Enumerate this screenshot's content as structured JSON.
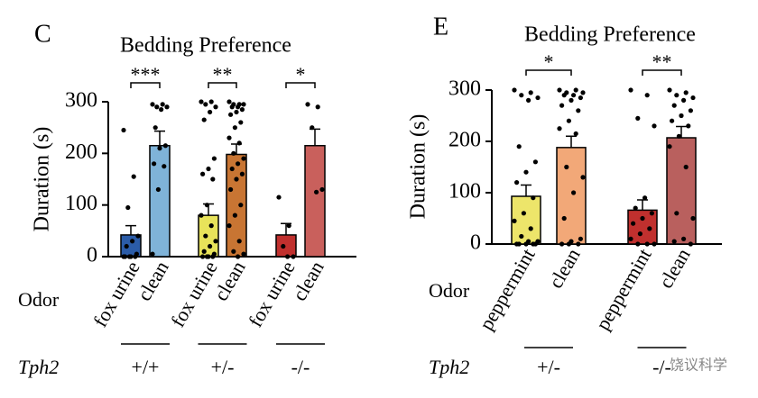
{
  "chart_data": [
    {
      "type": "bar",
      "panel": "C",
      "title": "Bedding Preference",
      "y_label": "Duration (s)",
      "axis_label": "Odor",
      "group_label": "Tph2",
      "categories": [
        "fox urine",
        "clean",
        "fox urine",
        "clean",
        "fox urine",
        "clean"
      ],
      "values": [
        42,
        215,
        80,
        198,
        42,
        215
      ],
      "errors": [
        18,
        28,
        22,
        20,
        22,
        32
      ],
      "colors": [
        "#2b5ca8",
        "#7fb3d8",
        "#e8e35a",
        "#c87533",
        "#c0302e",
        "#c9605c"
      ],
      "points": [
        [
          245,
          155,
          95,
          40,
          30,
          20,
          5,
          0,
          0,
          0,
          0,
          0
        ],
        [
          295,
          295,
          290,
          290,
          285,
          250,
          215,
          210,
          180,
          175,
          130,
          5
        ],
        [
          300,
          300,
          295,
          290,
          280,
          265,
          190,
          170,
          160,
          150,
          100,
          80,
          60,
          40,
          30,
          20,
          10,
          5,
          0,
          0,
          0,
          0
        ],
        [
          300,
          295,
          295,
          295,
          290,
          290,
          285,
          280,
          275,
          260,
          250,
          230,
          220,
          200,
          190,
          180,
          170,
          160,
          150,
          130,
          100,
          80,
          60,
          30,
          10,
          5,
          0
        ],
        [
          115,
          60,
          20,
          0,
          0
        ],
        [
          295,
          290,
          250,
          130,
          125
        ]
      ],
      "significance": [
        "***",
        "**",
        "*"
      ],
      "genotypes": [
        "+/+",
        "+/-",
        "-/-"
      ],
      "ylim": [
        0,
        300
      ],
      "yticks": [
        0,
        100,
        200,
        300
      ]
    },
    {
      "type": "bar",
      "panel": "E",
      "title": "Bedding Preference",
      "y_label": "Duration (s)",
      "axis_label": "Odor",
      "group_label": "Tph2",
      "categories": [
        "peppermint",
        "clean",
        "peppermint",
        "clean"
      ],
      "values": [
        93,
        188,
        66,
        207
      ],
      "errors": [
        22,
        22,
        20,
        22
      ],
      "colors": [
        "#ede56a",
        "#f2a878",
        "#c0302e",
        "#b9605e"
      ],
      "points": [
        [
          300,
          295,
          290,
          285,
          280,
          190,
          160,
          140,
          120,
          90,
          60,
          45,
          30,
          15,
          5,
          5,
          0,
          0,
          0,
          0,
          0
        ],
        [
          300,
          300,
          295,
          295,
          290,
          290,
          285,
          280,
          270,
          260,
          240,
          225,
          215,
          150,
          130,
          100,
          50,
          10,
          5,
          0,
          0,
          0
        ],
        [
          300,
          290,
          245,
          230,
          90,
          70,
          60,
          50,
          40,
          30,
          20,
          10,
          0,
          0,
          0
        ],
        [
          300,
          295,
          290,
          285,
          280,
          270,
          260,
          250,
          240,
          230,
          210,
          190,
          150,
          60,
          50,
          10,
          5,
          0
        ]
      ],
      "significance": [
        "*",
        "**"
      ],
      "genotypes": [
        "+/-",
        "-/-"
      ],
      "ylim": [
        0,
        300
      ],
      "yticks": [
        0,
        100,
        200,
        300
      ]
    }
  ],
  "watermark": "饶议科学"
}
